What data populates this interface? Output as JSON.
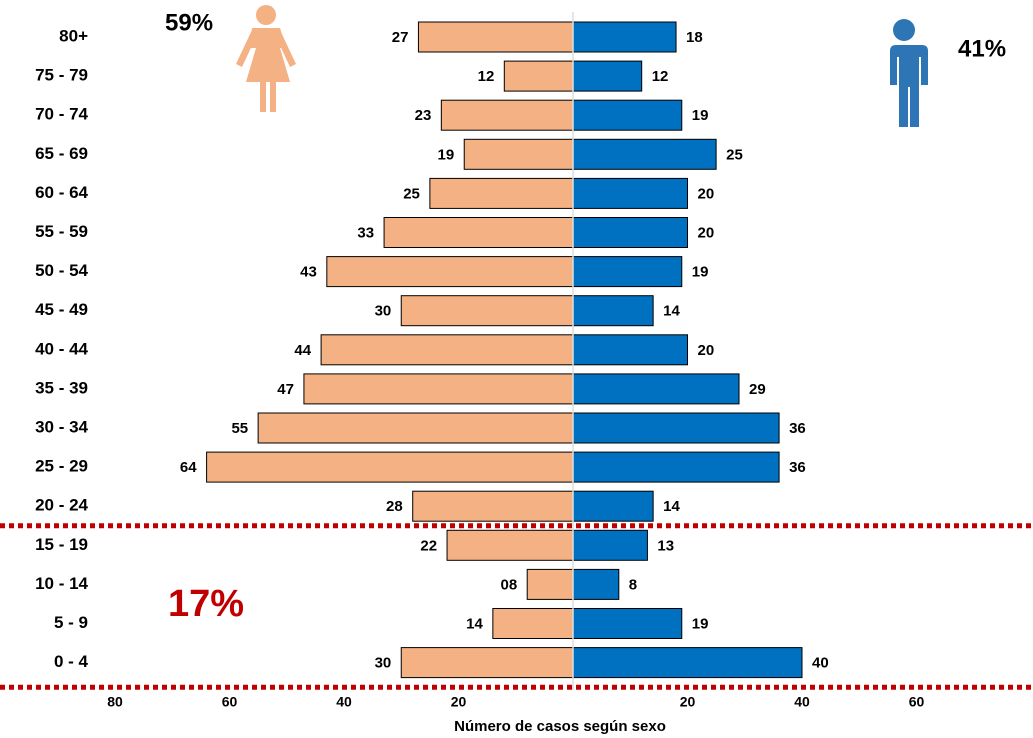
{
  "chart_data": {
    "type": "pyramid",
    "title": null,
    "categories": [
      "80+",
      "75 - 79",
      "70 - 74",
      "65 - 69",
      "60 - 64",
      "55 - 59",
      "50 - 54",
      "45 - 49",
      "40 - 44",
      "35 - 39",
      "30 - 34",
      "25 - 29",
      "20 - 24",
      "15 - 19",
      "10 - 14",
      "5 - 9",
      "0 - 4"
    ],
    "series": [
      {
        "color": "#F4B183",
        "values": [
          27,
          12,
          23,
          19,
          25,
          33,
          43,
          30,
          44,
          47,
          55,
          64,
          28,
          22,
          8,
          14,
          30
        ],
        "value_labels": [
          "27",
          "12",
          "23",
          "19",
          "25",
          "33",
          "43",
          "30",
          "44",
          "47",
          "55",
          "64",
          "28",
          "22",
          "08",
          "14",
          "30"
        ]
      },
      {
        "color": "#0070C0",
        "values": [
          18,
          12,
          19,
          25,
          20,
          20,
          19,
          14,
          20,
          29,
          36,
          36,
          14,
          13,
          8,
          19,
          40
        ]
      }
    ],
    "xlim": [
      -80,
      80
    ],
    "xticks": [
      {
        "value": -80,
        "label": "80"
      },
      {
        "value": -60,
        "label": "60"
      },
      {
        "value": -40,
        "label": "40"
      },
      {
        "value": -20,
        "label": "20"
      },
      20,
      40,
      60
    ],
    "xlabel": "Número de casos según sexo",
    "annotations": [
      "59%",
      "41%",
      "17%"
    ]
  }
}
